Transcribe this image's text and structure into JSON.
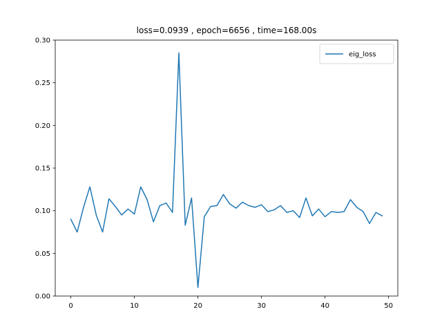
{
  "chart_data": {
    "type": "line",
    "title": "loss=0.0939 , epoch=6656 , time=168.00s",
    "xlabel": "",
    "ylabel": "",
    "xlim": [
      -2.45,
      51.45
    ],
    "ylim": [
      0,
      0.3
    ],
    "xticks": [
      0,
      10,
      20,
      30,
      40,
      50
    ],
    "yticks": [
      0.0,
      0.05,
      0.1,
      0.15,
      0.2,
      0.25,
      0.3
    ],
    "xtick_labels": [
      "0",
      "10",
      "20",
      "30",
      "40",
      "50"
    ],
    "ytick_labels": [
      "0.00",
      "0.05",
      "0.10",
      "0.15",
      "0.20",
      "0.25",
      "0.30"
    ],
    "grid": false,
    "legend_position": "top-right",
    "series": [
      {
        "name": "eig_loss",
        "color": "#1f77b4",
        "x": [
          0,
          1,
          2,
          3,
          4,
          5,
          6,
          7,
          8,
          9,
          10,
          11,
          12,
          13,
          14,
          15,
          16,
          17,
          18,
          19,
          20,
          21,
          22,
          23,
          24,
          25,
          26,
          27,
          28,
          29,
          30,
          31,
          32,
          33,
          34,
          35,
          36,
          37,
          38,
          39,
          40,
          41,
          42,
          43,
          44,
          45,
          46,
          47,
          48,
          49
        ],
        "y": [
          0.09,
          0.075,
          0.104,
          0.128,
          0.095,
          0.075,
          0.114,
          0.105,
          0.095,
          0.102,
          0.096,
          0.128,
          0.113,
          0.087,
          0.106,
          0.109,
          0.098,
          0.285,
          0.083,
          0.115,
          0.01,
          0.093,
          0.105,
          0.106,
          0.119,
          0.108,
          0.103,
          0.11,
          0.106,
          0.104,
          0.107,
          0.099,
          0.101,
          0.106,
          0.098,
          0.1,
          0.092,
          0.115,
          0.094,
          0.102,
          0.093,
          0.099,
          0.098,
          0.099,
          0.113,
          0.104,
          0.099,
          0.085,
          0.098,
          0.094
        ]
      }
    ]
  }
}
